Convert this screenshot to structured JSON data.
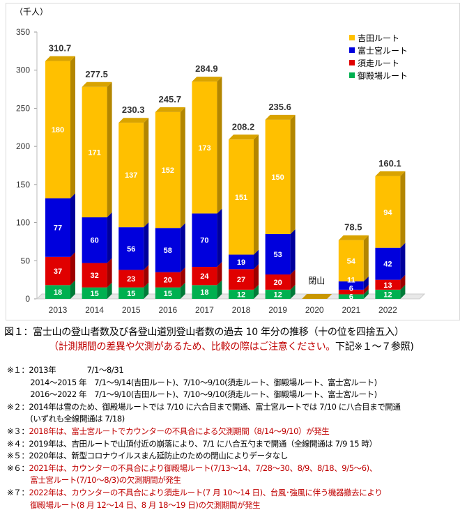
{
  "chart_data": {
    "type": "bar",
    "stacked": true,
    "unit_label": "（千人）",
    "categories": [
      "2013",
      "2014",
      "2015",
      "2016",
      "2017",
      "2018",
      "2019",
      "2020",
      "2021",
      "2022"
    ],
    "series": [
      {
        "name": "御殿場ルート",
        "color": "#00B050",
        "values": [
          18,
          15,
          15,
          15,
          18,
          12,
          12,
          null,
          6,
          12
        ]
      },
      {
        "name": "須走ルート",
        "color": "#E00000",
        "values": [
          37,
          32,
          23,
          20,
          24,
          27,
          20,
          null,
          6,
          13
        ]
      },
      {
        "name": "富士宮ルート",
        "color": "#0000DD",
        "values": [
          77,
          60,
          56,
          58,
          70,
          19,
          53,
          null,
          11,
          42
        ]
      },
      {
        "name": "吉田ルート",
        "color": "#FFC000",
        "values": [
          180,
          171,
          137,
          152,
          173,
          151,
          150,
          null,
          54,
          94
        ]
      }
    ],
    "totals": [
      310.7,
      277.5,
      230.3,
      245.7,
      284.9,
      208.2,
      235.6,
      null,
      78.5,
      160.1
    ],
    "annotations": [
      {
        "category": "2020",
        "text": "閉山"
      }
    ],
    "yticks": [
      0,
      50,
      100,
      150,
      200,
      250,
      300,
      350
    ],
    "ylim": [
      0,
      350
    ],
    "legend": "top-right"
  },
  "caption": {
    "title": "図１：富士山の登山者数及び各登山道別登山者数の過去 10 年分の推移（十の位を四捨五入）",
    "sub_red": "（計測期間の差異や欠測があるため、比較の際はご注意ください。",
    "sub_black": "下記※１～７参照)"
  },
  "notes": [
    {
      "text": "※１：2013年　　　　7/1～8/31",
      "red": false
    },
    {
      "text": "　　　2014～2015 年　7/1～9/14(吉田ルート)、7/10～9/10(須走ルート、御殿場ルート、富士宮ルート)",
      "red": false
    },
    {
      "text": "　　　2016～2022 年　7/1～9/10(吉田ルート)、7/10～9/10(須走ルート、御殿場ルート、富士宮ルート)",
      "red": false
    },
    {
      "text": "※２：2014年は雪のため、御殿場ルートでは 7/10 に六合目まで開通、富士宮ルートでは 7/10 に八合目まで開通",
      "red": false
    },
    {
      "text": "　　　(いずれも全線開通は 7/18)",
      "red": false
    },
    {
      "label": "※３：",
      "text": "2018年は、富士宮ルートでカウンターの不具合による欠測期間（8/14～9/10）が発生",
      "red": true
    },
    {
      "text": "※４：2019年は、吉田ルートで山頂付近の崩落により、7/1 に八合五勺まで開通（全線開通は 7/9 15 時）",
      "red": false
    },
    {
      "text": "※５：2020年は、新型コロナウイルスまん延防止のための閉山によりデータなし",
      "red": false
    },
    {
      "label": "※６：",
      "text": "2021年は、カウンターの不具合により御殿場ルート(7/13～14、7/28～30、8/9、8/18、9/5～6)、",
      "red": true
    },
    {
      "text": "　　　富士宮ルート(7/10～8/3)の欠測期間が発生",
      "red": true
    },
    {
      "label": "※７：",
      "text": "2022年は、カウンターの不具合により須走ルート(7 月 10～14 日)、台風･強風に伴う機器撤去により",
      "red": true
    },
    {
      "text": "　　　御殿場ルート(8 月 12～14 日、8 月 18～19 日)の欠測期間が発生",
      "red": true
    }
  ]
}
